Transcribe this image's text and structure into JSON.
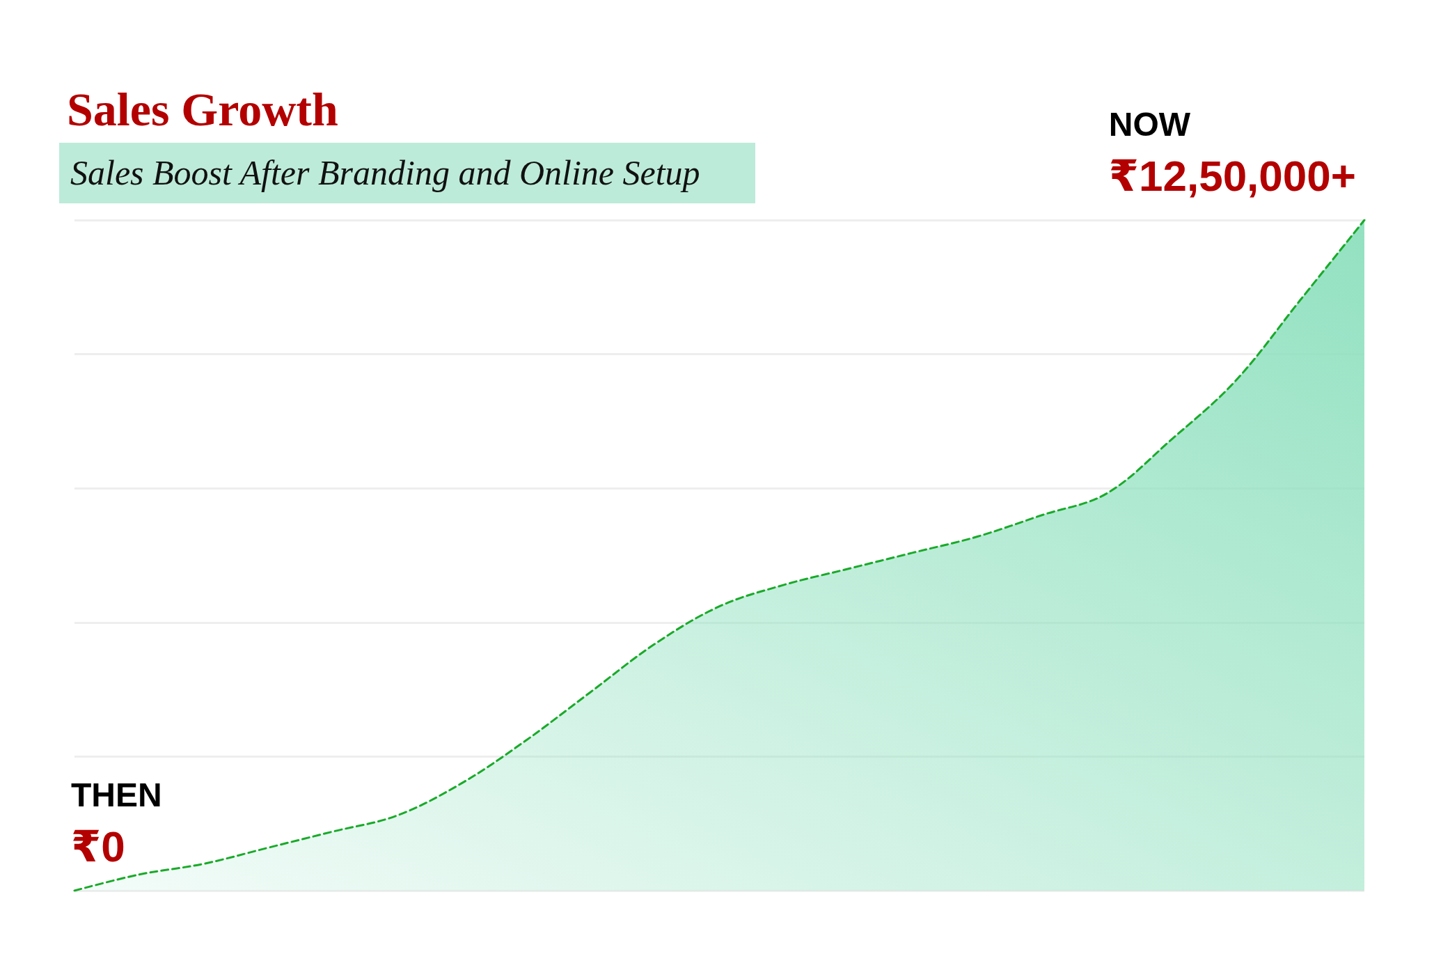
{
  "chart_data": {
    "type": "area",
    "title": "Sales Growth",
    "subtitle": "Sales Boost After Branding and Online Setup",
    "categories": [
      null,
      null,
      null,
      null,
      null,
      null,
      null,
      null,
      null,
      null,
      null,
      null,
      null,
      null,
      null,
      null,
      null,
      null,
      null,
      null,
      null
    ],
    "ylim": [
      0,
      1250000
    ],
    "yticks": [
      {
        "value": 0,
        "label": null
      },
      {
        "value": 250000,
        "label": null
      },
      {
        "value": 500000,
        "label": null
      },
      {
        "value": 750000,
        "label": null
      },
      {
        "value": 1000000,
        "label": null
      },
      {
        "value": 1250000,
        "label": null
      }
    ],
    "grid": "y",
    "line_style": "dashed",
    "marker": "none",
    "series": [
      {
        "color": "#1aaa2a",
        "values": [
          0,
          30000,
          50000,
          80000,
          110000,
          140000,
          200000,
          280000,
          370000,
          460000,
          530000,
          570000,
          600000,
          630000,
          660000,
          700000,
          740000,
          840000,
          950000,
          1100000,
          1250000
        ],
        "value_labels": [
          "₹0",
          null,
          null,
          null,
          null,
          null,
          null,
          null,
          null,
          null,
          null,
          null,
          null,
          null,
          null,
          null,
          null,
          null,
          null,
          null,
          "₹12,50,000+"
        ]
      }
    ],
    "annotations": [
      "THEN",
      "NOW"
    ]
  }
}
